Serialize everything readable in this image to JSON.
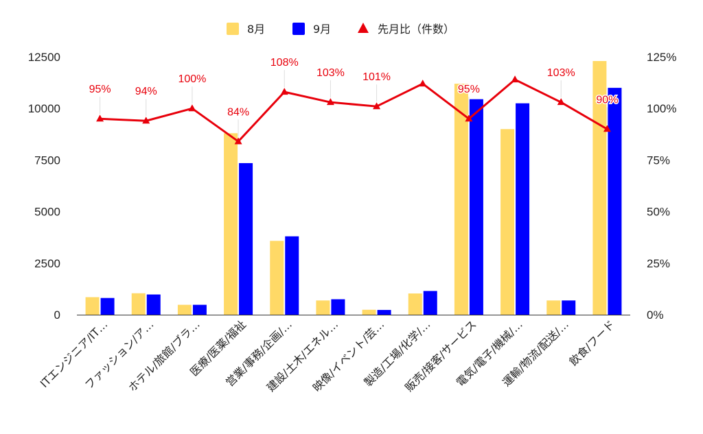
{
  "chart_data": {
    "type": "bar",
    "categories": [
      "ITエンジニア/IT…",
      "ファッション/ア…",
      "ホテル/旅館/ブラ…",
      "医療/医薬/福祉",
      "営業/事務/企画/…",
      "建設/土木/エネル…",
      "映像/イベント/芸…",
      "製造/工場/化学/…",
      "販売/接客/サービス",
      "電気/電子/機械/…",
      "運輸/物流/配送/…",
      "飲食/フード"
    ],
    "series": [
      {
        "name": "8月",
        "axis": "left",
        "color": "#ffd966",
        "values": [
          850,
          1040,
          480,
          8800,
          3580,
          690,
          240,
          1030,
          11200,
          9000,
          690,
          12300
        ]
      },
      {
        "name": "9月",
        "axis": "left",
        "color": "#0000ff",
        "values": [
          810,
          980,
          480,
          7350,
          3800,
          750,
          230,
          1150,
          10450,
          10250,
          690,
          11000
        ]
      },
      {
        "name": "先月比（件数）",
        "type": "line",
        "axis": "right",
        "color": "#e8000b",
        "marker": "triangle",
        "values": [
          95,
          94,
          100,
          84,
          108,
          103,
          101,
          112,
          95,
          114,
          103,
          90
        ],
        "data_labels": [
          "95%",
          "94%",
          "100%",
          "84%",
          "108%",
          "103%",
          "101%",
          "",
          "95%",
          "",
          "103%",
          "90%"
        ]
      }
    ],
    "y_left": {
      "min": 0,
      "max": 12500,
      "ticks": [
        "0",
        "2500",
        "5000",
        "7500",
        "10000",
        "12500"
      ]
    },
    "y_right": {
      "min": 0,
      "max": 125,
      "ticks": [
        "0%",
        "25%",
        "50%",
        "75%",
        "100%",
        "125%"
      ]
    },
    "legend_position": "top-center",
    "grid": false,
    "title": "",
    "xlabel": "",
    "ylabel": ""
  }
}
